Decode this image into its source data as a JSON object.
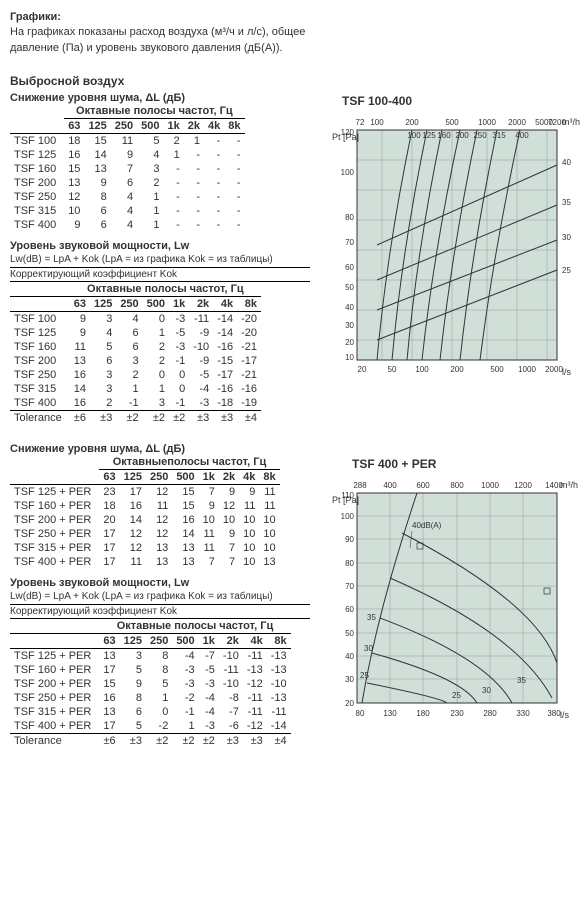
{
  "intro": {
    "title": "Графики:",
    "text1": "На графиках показаны расход воздуха (м³/ч и л/с), общее",
    "text2": "давление (Па) и уровень звукового давления (дБ(A))."
  },
  "section1_title": "Выбросной воздух",
  "noise_red_title": "Снижение уровня шума, ΔL (дБ)",
  "oct_header": "Октавные полосы частот, Гц",
  "oct_header2": "Октавныеполосы частот, Гц",
  "freq": [
    "63",
    "125",
    "250",
    "500",
    "1k",
    "2k",
    "4k",
    "8k"
  ],
  "t1_rows": [
    {
      "n": "TSF 100",
      "v": [
        "18",
        "15",
        "11",
        "5",
        "2",
        "1",
        "-",
        "-"
      ]
    },
    {
      "n": "TSF 125",
      "v": [
        "16",
        "14",
        "9",
        "4",
        "1",
        "-",
        "-",
        "-"
      ]
    },
    {
      "n": "TSF 160",
      "v": [
        "15",
        "13",
        "7",
        "3",
        "-",
        "-",
        "-",
        "-"
      ]
    },
    {
      "n": "TSF 200",
      "v": [
        "13",
        "9",
        "6",
        "2",
        "-",
        "-",
        "-",
        "-"
      ]
    },
    {
      "n": "TSF 250",
      "v": [
        "12",
        "8",
        "4",
        "1",
        "-",
        "-",
        "-",
        "-"
      ]
    },
    {
      "n": "TSF 315",
      "v": [
        "10",
        "6",
        "4",
        "1",
        "-",
        "-",
        "-",
        "-"
      ]
    },
    {
      "n": "TSF 400",
      "v": [
        "9",
        "6",
        "4",
        "1",
        "-",
        "-",
        "-",
        "-"
      ]
    }
  ],
  "lwtitle": "Уровень звуковой мощности, Lw",
  "lwformula": "Lw(dB) = LpA + Kok (LpA = из графика Kok = из таблицы)",
  "koktitle": "Корректирующий коэффициент Kok",
  "t2_rows": [
    {
      "n": "TSF 100",
      "v": [
        "9",
        "3",
        "4",
        "0",
        "-3",
        "-11",
        "-14",
        "-20"
      ]
    },
    {
      "n": "TSF 125",
      "v": [
        "9",
        "4",
        "6",
        "1",
        "-5",
        "-9",
        "-14",
        "-20"
      ]
    },
    {
      "n": "TSF 160",
      "v": [
        "11",
        "5",
        "6",
        "2",
        "-3",
        "-10",
        "-16",
        "-21"
      ]
    },
    {
      "n": "TSF 200",
      "v": [
        "13",
        "6",
        "3",
        "2",
        "-1",
        "-9",
        "-15",
        "-17"
      ]
    },
    {
      "n": "TSF 250",
      "v": [
        "16",
        "3",
        "2",
        "0",
        "0",
        "-5",
        "-17",
        "-21"
      ]
    },
    {
      "n": "TSF 315",
      "v": [
        "14",
        "3",
        "1",
        "1",
        "0",
        "-4",
        "-16",
        "-16"
      ]
    },
    {
      "n": "TSF 400",
      "v": [
        "16",
        "2",
        "-1",
        "3",
        "-1",
        "-3",
        "-18",
        "-19"
      ]
    },
    {
      "n": "Tolerance",
      "v": [
        "±6",
        "±3",
        "±2",
        "±2",
        "±2",
        "±3",
        "±3",
        "±4"
      ]
    }
  ],
  "t3_rows": [
    {
      "n": "TSF 125 + PER",
      "v": [
        "23",
        "17",
        "12",
        "15",
        "7",
        "9",
        "9",
        "11"
      ]
    },
    {
      "n": "TSF 160 + PER",
      "v": [
        "18",
        "16",
        "11",
        "15",
        "9",
        "12",
        "11",
        "11"
      ]
    },
    {
      "n": "TSF 200 + PER",
      "v": [
        "20",
        "14",
        "12",
        "16",
        "10",
        "10",
        "10",
        "10"
      ]
    },
    {
      "n": "TSF 250 + PER",
      "v": [
        "17",
        "12",
        "12",
        "14",
        "11",
        "9",
        "10",
        "10"
      ]
    },
    {
      "n": "TSF 315 + PER",
      "v": [
        "17",
        "12",
        "13",
        "13",
        "11",
        "7",
        "10",
        "10"
      ]
    },
    {
      "n": "TSF 400 + PER",
      "v": [
        "17",
        "11",
        "13",
        "13",
        "7",
        "7",
        "10",
        "13"
      ]
    }
  ],
  "t4_rows": [
    {
      "n": "TSF 125 + PER",
      "v": [
        "13",
        "3",
        "8",
        "-4",
        "-7",
        "-10",
        "-11",
        "-13"
      ]
    },
    {
      "n": "TSF 160 + PER",
      "v": [
        "17",
        "5",
        "8",
        "-3",
        "-5",
        "-11",
        "-13",
        "-13"
      ]
    },
    {
      "n": "TSF 200 + PER",
      "v": [
        "15",
        "9",
        "5",
        "-3",
        "-3",
        "-10",
        "-12",
        "-10"
      ]
    },
    {
      "n": "TSF 250 + PER",
      "v": [
        "16",
        "8",
        "1",
        "-2",
        "-4",
        "-8",
        "-11",
        "-13"
      ]
    },
    {
      "n": "TSF 315 + PER",
      "v": [
        "13",
        "6",
        "0",
        "-1",
        "-4",
        "-7",
        "-11",
        "-11"
      ]
    },
    {
      "n": "TSF 400 + PER",
      "v": [
        "17",
        "5",
        "-2",
        "1",
        "-3",
        "-6",
        "-12",
        "-14"
      ]
    },
    {
      "n": "Tolerance",
      "v": [
        "±6",
        "±3",
        "±2",
        "±2",
        "±2",
        "±3",
        "±3",
        "±4"
      ]
    }
  ],
  "chart1": {
    "title": "TSF 100-400",
    "x_top_ticks": [
      "72",
      "100",
      "200",
      "500",
      "1000",
      "2000",
      "5000",
      "7200"
    ],
    "x_bot_ticks": [
      "20",
      "50",
      "100",
      "200",
      "500",
      "1000",
      "2000"
    ],
    "y_ticks": [
      "10",
      "20",
      "30",
      "40",
      "50",
      "60",
      "70",
      "80",
      "100",
      "120"
    ],
    "x_top_unit": "m³/h",
    "x_bot_unit": "l/s",
    "y_unit": "Pt [Pa]",
    "model_labels": [
      "100",
      "125",
      "160",
      "200",
      "250",
      "315",
      "400"
    ],
    "db_labels": [
      "25",
      "30",
      "35",
      "40"
    ],
    "bg": "#d4e3da"
  },
  "chart2": {
    "title": "TSF 400 + PER",
    "x_top_ticks": [
      "288",
      "400",
      "600",
      "800",
      "1000",
      "1200",
      "1400"
    ],
    "x_bot_ticks": [
      "80",
      "130",
      "180",
      "230",
      "280",
      "330",
      "380"
    ],
    "y_ticks": [
      "20",
      "30",
      "40",
      "50",
      "60",
      "70",
      "80",
      "90",
      "100",
      "110"
    ],
    "x_top_unit": "m³/h",
    "x_bot_unit": "l/s",
    "y_unit": "Pt [Pa]",
    "note": "40dB(A)",
    "db_labels": [
      "25",
      "30",
      "35",
      "30",
      "25"
    ],
    "bg": "#d4e3da"
  }
}
